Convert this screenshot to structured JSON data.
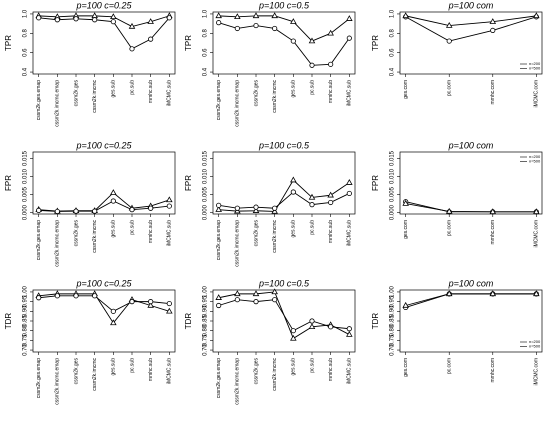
{
  "chart_data": [
    {
      "type": "line",
      "title": "p=100  c=0.25",
      "y_label": "TPR",
      "categories": [
        "cssm2k.ges.emap",
        "cssm2k.imcmc.emap",
        "cssm2k.ges",
        "cssm2k.imcmc",
        "ges.sub",
        "pc.sub",
        "mmhc.sub",
        "iMCMC.sub"
      ],
      "series": [
        {
          "marker": "triangle",
          "color": "#000000",
          "values": [
            0.98,
            0.97,
            0.98,
            0.98,
            0.97,
            0.87,
            0.92,
            0.98
          ]
        },
        {
          "marker": "circle",
          "color": "#000000",
          "values": [
            0.96,
            0.94,
            0.95,
            0.94,
            0.92,
            0.64,
            0.74,
            0.96
          ]
        }
      ],
      "ylim": [
        0.38,
        1.02
      ],
      "yticks": [
        0.4,
        0.6,
        0.8,
        {
          "value": 1,
          "label": "1.0"
        }
      ]
    },
    {
      "type": "line",
      "title": "p=100  c=0.5",
      "y_label": "TPR",
      "categories": [
        "cssm2k.ges.emap",
        "cssm2k.imcmc.emap",
        "cssm2k.ges",
        "cssm2k.imcmc",
        "ges.sub",
        "pc.sub",
        "mmhc.sub",
        "iMCMC.sub"
      ],
      "series": [
        {
          "marker": "triangle",
          "color": "#000000",
          "values": [
            0.98,
            0.97,
            0.98,
            0.98,
            0.92,
            0.72,
            0.8,
            0.95
          ]
        },
        {
          "marker": "circle",
          "color": "#000000",
          "values": [
            0.91,
            0.85,
            0.88,
            0.85,
            0.72,
            0.47,
            0.48,
            0.75
          ]
        }
      ],
      "ylim": [
        0.38,
        1.02
      ],
      "yticks": [
        0.4,
        0.6,
        0.8,
        {
          "value": 1,
          "label": "1.0"
        }
      ]
    },
    {
      "type": "line",
      "title": "p=100  com",
      "y_label": "TPR",
      "categories": [
        "ges.com",
        "pc.com",
        "mmhc.com",
        "iMCMC.com"
      ],
      "series": [
        {
          "name": "n=200",
          "marker": "circle",
          "color": "#000000",
          "values": [
            0.97,
            0.72,
            0.83,
            0.97
          ]
        },
        {
          "name": "n=500",
          "marker": "triangle",
          "color": "#000000",
          "values": [
            0.98,
            0.88,
            0.92,
            0.98
          ]
        }
      ],
      "ylim": [
        0.38,
        1.02
      ],
      "yticks": [
        0.4,
        0.6,
        0.8,
        {
          "value": 1,
          "label": "1.0"
        }
      ],
      "legend": "bottom-right"
    },
    {
      "type": "line",
      "title": "p=100  c=0.25",
      "y_label": "FPR",
      "categories": [
        "cssm2k.ges.emap",
        "cssm2k.imcmc.emap",
        "cssm2k.ges",
        "cssm2k.imcmc",
        "ges.sub",
        "pc.sub",
        "mmhc.sub",
        "iMCMC.sub"
      ],
      "series": [
        {
          "marker": "triangle",
          "color": "#000000",
          "values": [
            0.0008,
            0.0004,
            0.0005,
            0.0005,
            0.0055,
            0.0012,
            0.0018,
            0.0035
          ]
        },
        {
          "marker": "circle",
          "color": "#000000",
          "values": [
            0.0006,
            0.0003,
            0.0004,
            0.0004,
            0.0032,
            0.0008,
            0.0012,
            0.0018
          ]
        }
      ],
      "ylim": [
        -0.0004,
        0.0168
      ],
      "yticks": [
        {
          "value": 0,
          "label": "0.000"
        },
        {
          "value": 0.005,
          "label": "0.005"
        },
        {
          "value": 0.01,
          "label": "0.010"
        },
        {
          "value": 0.015,
          "label": "0.015"
        }
      ]
    },
    {
      "type": "line",
      "title": "p=100  c=0.5",
      "y_label": "FPR",
      "categories": [
        "cssm2k.ges.emap",
        "cssm2k.imcmc.emap",
        "cssm2k.ges",
        "cssm2k.imcmc",
        "ges.sub",
        "pc.sub",
        "mmhc.sub",
        "iMCMC.sub"
      ],
      "series": [
        {
          "marker": "triangle",
          "color": "#000000",
          "values": [
            0.0008,
            0.0004,
            0.0005,
            0.0003,
            0.009,
            0.0042,
            0.0048,
            0.0083
          ]
        },
        {
          "marker": "circle",
          "color": "#000000",
          "values": [
            0.002,
            0.0012,
            0.0015,
            0.0012,
            0.0057,
            0.0022,
            0.0028,
            0.0053
          ]
        }
      ],
      "ylim": [
        -0.0004,
        0.0168
      ],
      "yticks": [
        {
          "value": 0,
          "label": "0.000"
        },
        {
          "value": 0.005,
          "label": "0.005"
        },
        {
          "value": 0.01,
          "label": "0.010"
        },
        {
          "value": 0.015,
          "label": "0.015"
        }
      ]
    },
    {
      "type": "line",
      "title": "p=100  com",
      "y_label": "FPR",
      "categories": [
        "ges.com",
        "pc.com",
        "mmhc.com",
        "iMCMC.com"
      ],
      "series": [
        {
          "name": "n=200",
          "marker": "circle",
          "color": "#000000",
          "values": [
            0.003,
            0.0002,
            0.0002,
            0.0002
          ]
        },
        {
          "name": "n=500",
          "marker": "triangle",
          "color": "#000000",
          "values": [
            0.0025,
            0.0003,
            0.0002,
            0.0002
          ]
        }
      ],
      "ylim": [
        -0.0004,
        0.0168
      ],
      "yticks": [
        {
          "value": 0,
          "label": "0.000"
        },
        {
          "value": 0.005,
          "label": "0.005"
        },
        {
          "value": 0.01,
          "label": "0.010"
        },
        {
          "value": 0.015,
          "label": "0.015"
        }
      ],
      "legend": "top-right"
    },
    {
      "type": "line",
      "title": "p=100  c=0.25",
      "y_label": "TDR",
      "categories": [
        "cssm2k.ges.emap",
        "cssm2k.imcmc.emap",
        "cssm2k.ges",
        "cssm2k.imcmc",
        "ges.sub",
        "pc.sub",
        "mmhc.sub",
        "iMCMC.sub"
      ],
      "series": [
        {
          "marker": "triangle",
          "color": "#000000",
          "values": [
            0.98,
            0.99,
            0.99,
            0.99,
            0.84,
            0.96,
            0.93,
            0.9
          ]
        },
        {
          "marker": "circle",
          "color": "#000000",
          "values": [
            0.97,
            0.98,
            0.98,
            0.98,
            0.9,
            0.95,
            0.95,
            0.94
          ]
        }
      ],
      "ylim": [
        0.69,
        1.01
      ],
      "yticks": [
        {
          "value": 0.7,
          "label": "0.70"
        },
        0.75,
        {
          "value": 0.8,
          "label": "0.80"
        },
        0.85,
        {
          "value": 0.9,
          "label": "0.90"
        },
        0.95,
        {
          "value": 1,
          "label": "1.00"
        }
      ]
    },
    {
      "type": "line",
      "title": "p=100  c=0.5",
      "y_label": "TDR",
      "categories": [
        "cssm2k.ges.emap",
        "cssm2k.imcmc.emap",
        "cssm2k.ges",
        "cssm2k.imcmc",
        "ges.sub",
        "pc.sub",
        "mmhc.sub",
        "iMCMC.sub"
      ],
      "series": [
        {
          "marker": "triangle",
          "color": "#000000",
          "values": [
            0.97,
            0.99,
            0.99,
            1.0,
            0.76,
            0.82,
            0.83,
            0.78
          ]
        },
        {
          "marker": "circle",
          "color": "#000000",
          "values": [
            0.93,
            0.96,
            0.95,
            0.96,
            0.8,
            0.85,
            0.82,
            0.81
          ]
        }
      ],
      "ylim": [
        0.69,
        1.01
      ],
      "yticks": [
        {
          "value": 0.7,
          "label": "0.70"
        },
        0.75,
        {
          "value": 0.8,
          "label": "0.80"
        },
        0.85,
        {
          "value": 0.9,
          "label": "0.90"
        },
        0.95,
        {
          "value": 1,
          "label": "1.00"
        }
      ]
    },
    {
      "type": "line",
      "title": "p=100  com",
      "y_label": "TDR",
      "categories": [
        "ges.com",
        "pc.com",
        "mmhc.com",
        "iMCMC.com"
      ],
      "series": [
        {
          "name": "n=200",
          "marker": "circle",
          "color": "#000000",
          "values": [
            0.92,
            0.99,
            0.99,
            0.99
          ]
        },
        {
          "name": "n=500",
          "marker": "triangle",
          "color": "#000000",
          "values": [
            0.93,
            0.99,
            0.99,
            0.99
          ]
        }
      ],
      "ylim": [
        0.69,
        1.01
      ],
      "yticks": [
        {
          "value": 0.7,
          "label": "0.70"
        },
        0.75,
        {
          "value": 0.8,
          "label": "0.80"
        },
        0.85,
        {
          "value": 0.9,
          "label": "0.90"
        },
        0.95,
        {
          "value": 1,
          "label": "1.00"
        }
      ],
      "legend": "bottom-right"
    }
  ]
}
